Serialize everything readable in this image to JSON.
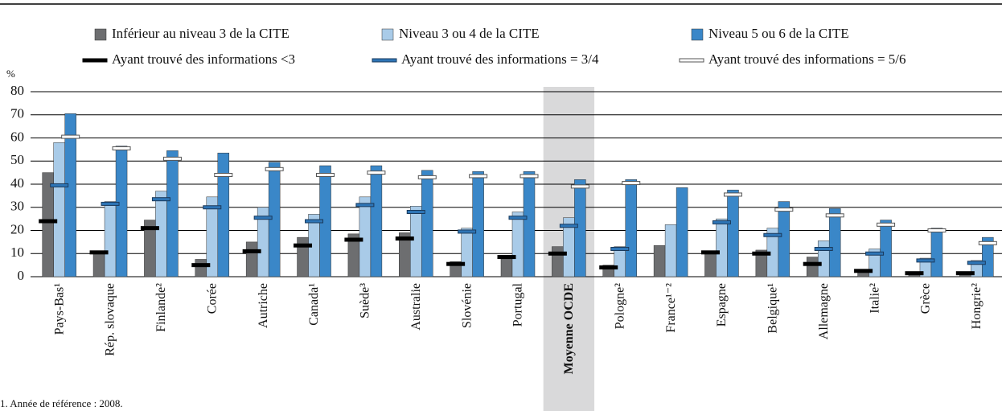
{
  "chart_data": {
    "type": "bar",
    "y_label": "%",
    "categories": [
      "Pays-Bas¹",
      "Rép. slovaque",
      "Finlande²",
      "Corée",
      "Autriche",
      "Canada¹",
      "Suède³",
      "Australie",
      "Slovénie",
      "Portugal",
      "Moyenne OCDE",
      "Pologne²",
      "France¹⁻²",
      "Espagne",
      "Belgique¹",
      "Allemagne",
      "Italie²",
      "Grèce",
      "Hongrie²"
    ],
    "highlight_index": 10,
    "series": [
      {
        "name": "Inférieur au niveau 3 de la CITE",
        "style": "bar",
        "color": "#6d6e70",
        "values": [
          45,
          11,
          24.5,
          7.5,
          15,
          17,
          18.5,
          19,
          6.5,
          9,
          13,
          5,
          13.5,
          11,
          11.5,
          8.5,
          3,
          2,
          2
        ]
      },
      {
        "name": "Niveau 3 ou 4 de la CITE",
        "style": "bar",
        "color": "#a9cbe8",
        "values": [
          58,
          32.5,
          37,
          34.5,
          30,
          27,
          34.5,
          30.5,
          21,
          28,
          25.5,
          13,
          22.5,
          25,
          21,
          15.5,
          12,
          8,
          7
        ]
      },
      {
        "name": "Niveau 5 ou 6 de la CITE",
        "style": "bar",
        "color": "#3a87c8",
        "values": [
          70.5,
          56.5,
          54.5,
          53.5,
          49.5,
          48,
          48,
          46,
          45.5,
          45.5,
          42,
          42,
          38.5,
          37.5,
          32.5,
          29.5,
          24.5,
          21,
          17
        ]
      },
      {
        "name": "Ayant trouvé des informations <3",
        "style": "marker",
        "color": "#000000",
        "values": [
          24,
          10.5,
          21,
          5,
          11,
          13.5,
          16,
          16.5,
          5.5,
          8.5,
          10,
          4,
          null,
          10.5,
          10,
          5.5,
          2.5,
          1.5,
          1.5
        ]
      },
      {
        "name": "Ayant trouvé des informations = 3/4",
        "style": "marker",
        "color": "#2e75b6",
        "values": [
          39.5,
          31.5,
          33.5,
          30,
          25.5,
          24,
          31,
          28,
          19.5,
          25.5,
          22,
          12,
          null,
          23.5,
          18,
          12,
          10,
          7,
          6
        ]
      },
      {
        "name": "Ayant trouvé des informations = 5/6",
        "style": "marker",
        "color": "#ffffff",
        "values": [
          60.5,
          55.5,
          51,
          44,
          46.5,
          44,
          45,
          43,
          43.5,
          43.5,
          39,
          40.5,
          null,
          35.5,
          29,
          26.5,
          22.5,
          20,
          14.5
        ]
      }
    ],
    "ylim": [
      0,
      80
    ],
    "yticks": [
      0,
      10,
      20,
      30,
      40,
      50,
      60,
      70,
      80
    ],
    "grid": true,
    "footnote": "1. Année de référence : 2008."
  }
}
